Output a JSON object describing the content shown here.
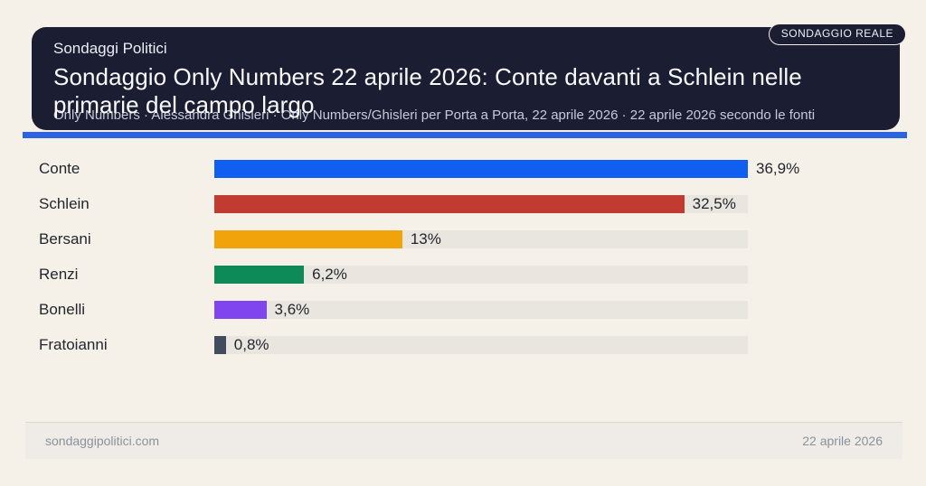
{
  "page": {
    "background": "#f6f1e8"
  },
  "header": {
    "kicker": "Sondaggi Politici",
    "title": "Sondaggio Only Numbers 22 aprile 2026: Conte davanti a Schlein nelle primarie del campo largo",
    "subtitle": "Only Numbers · Alessandra Ghisleri · Only Numbers/Ghisleri per Porta a Porta, 22 aprile 2026 · 22 aprile 2026 secondo le fonti",
    "badge": "SONDAGGIO REALE",
    "background": "#1b1e32",
    "accent_bar_color": "#2c63e0"
  },
  "chart_data": {
    "type": "bar",
    "orientation": "horizontal",
    "title": "Sondaggio Only Numbers 22 aprile 2026: Conte davanti a Schlein nelle primarie del campo largo",
    "categories": [
      "Conte",
      "Schlein",
      "Bersani",
      "Renzi",
      "Bonelli",
      "Fratoianni"
    ],
    "values": [
      36.9,
      32.5,
      13,
      6.2,
      3.6,
      0.8
    ],
    "value_labels": [
      "36,9%",
      "32,5%",
      "13%",
      "6,2%",
      "3,6%",
      "0,8%"
    ],
    "bar_colors": [
      "#105ff0",
      "#c23b30",
      "#f0a30a",
      "#0d8a58",
      "#8045ee",
      "#414d5f"
    ],
    "track_color": "#e9e5df",
    "xlim": [
      0,
      36.9
    ],
    "grid": false,
    "legend": false
  },
  "footer": {
    "site": "sondaggipolitici.com",
    "date": "22 aprile 2026"
  }
}
